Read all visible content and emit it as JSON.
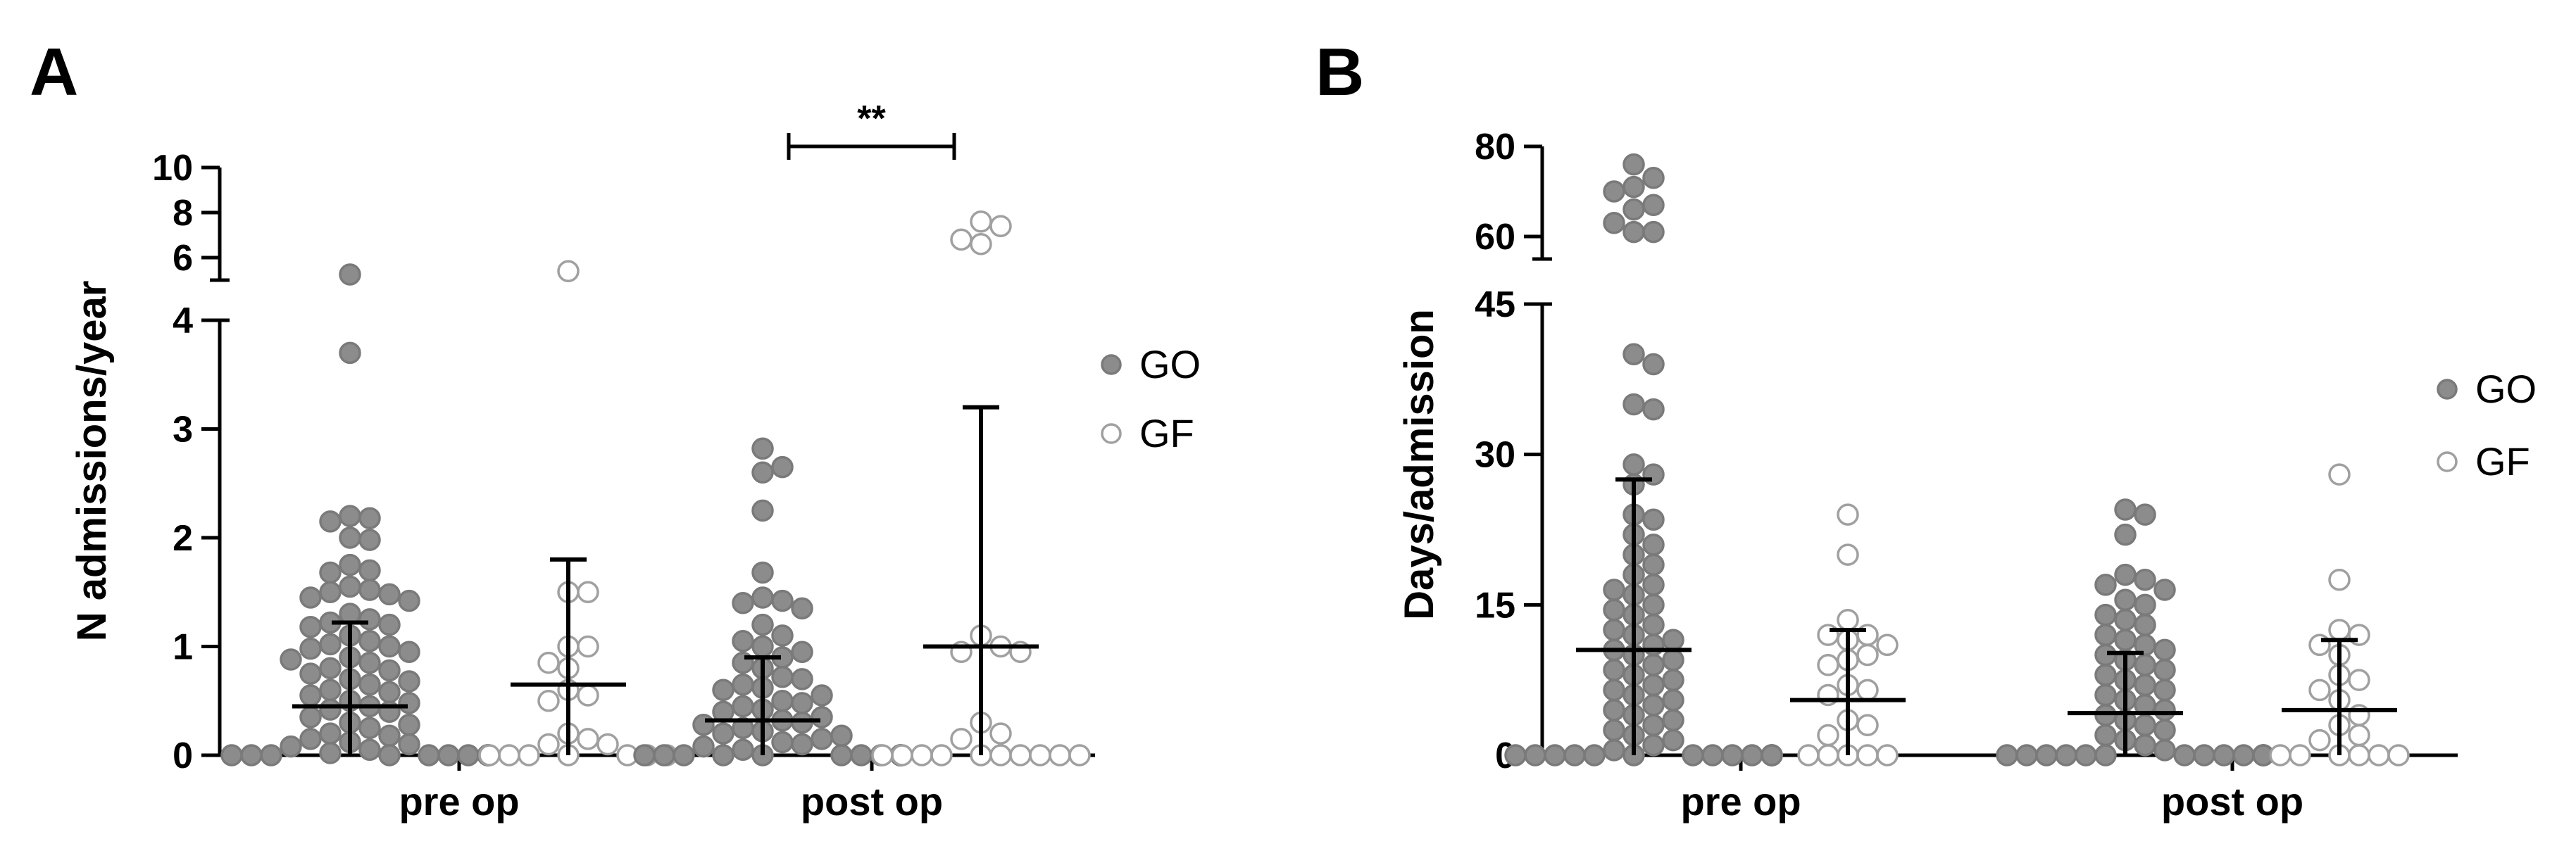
{
  "chart_data": [
    {
      "panel": "A",
      "type": "scatter",
      "ylabel": "N admissions/year",
      "categories": [
        "pre op",
        "post op"
      ],
      "yaxis_lower": {
        "range": [
          0,
          4
        ],
        "ticks": [
          "0",
          "1",
          "2",
          "3",
          "4"
        ],
        "tick_values": [
          0,
          1,
          2,
          3,
          4
        ]
      },
      "yaxis_upper": {
        "range": [
          5,
          10
        ],
        "ticks": [
          "6",
          "8",
          "10"
        ],
        "tick_values": [
          6,
          8,
          10
        ]
      },
      "legend": [
        {
          "name": "GO",
          "fill": "#8c8c8c",
          "stroke": "#7a7a7a"
        },
        {
          "name": "GF",
          "fill": "#ffffff",
          "stroke": "#a0a0a0"
        }
      ],
      "significance": {
        "label": "**",
        "between": [
          "post op GO",
          "post op GF"
        ]
      },
      "series": [
        {
          "name": "GO",
          "category": "pre op",
          "median": 0.45,
          "iqr": [
            0.0,
            1.22
          ],
          "values": [
            5.25,
            3.7,
            2.2,
            2.18,
            2.15,
            2.0,
            1.98,
            1.75,
            1.7,
            1.68,
            1.55,
            1.52,
            1.5,
            1.48,
            1.45,
            1.42,
            1.3,
            1.25,
            1.22,
            1.2,
            1.18,
            1.1,
            1.05,
            1.02,
            1.0,
            0.98,
            0.95,
            0.9,
            0.88,
            0.85,
            0.8,
            0.78,
            0.75,
            0.7,
            0.68,
            0.65,
            0.6,
            0.58,
            0.55,
            0.5,
            0.48,
            0.45,
            0.42,
            0.4,
            0.35,
            0.3,
            0.28,
            0.25,
            0.2,
            0.18,
            0.15,
            0.12,
            0.1,
            0.08,
            0.05,
            0.02,
            0,
            0,
            0,
            0,
            0,
            0,
            0,
            0,
            0,
            0,
            0,
            0,
            0,
            0,
            0,
            0
          ]
        },
        {
          "name": "GF",
          "category": "pre op",
          "median": 0.65,
          "iqr": [
            0.0,
            1.8
          ],
          "values": [
            5.4,
            1.5,
            1.5,
            1.0,
            1.0,
            0.85,
            0.8,
            0.6,
            0.55,
            0.5,
            0.2,
            0.15,
            0.1,
            0.1,
            0,
            0,
            0,
            0,
            0,
            0,
            0
          ]
        },
        {
          "name": "GO",
          "category": "post op",
          "median": 0.32,
          "iqr": [
            0.0,
            0.9
          ],
          "values": [
            2.82,
            2.65,
            2.6,
            2.25,
            1.68,
            1.45,
            1.42,
            1.4,
            1.35,
            1.2,
            1.1,
            1.05,
            1.0,
            0.95,
            0.9,
            0.85,
            0.8,
            0.72,
            0.7,
            0.65,
            0.62,
            0.6,
            0.55,
            0.5,
            0.48,
            0.45,
            0.42,
            0.4,
            0.35,
            0.32,
            0.3,
            0.28,
            0.25,
            0.22,
            0.2,
            0.18,
            0.15,
            0.12,
            0.1,
            0.08,
            0.05,
            0,
            0,
            0,
            0,
            0,
            0,
            0,
            0,
            0,
            0,
            0,
            0,
            0,
            0,
            0,
            0
          ]
        },
        {
          "name": "GF",
          "category": "post op",
          "median": 1.0,
          "iqr": [
            0.0,
            3.2
          ],
          "values": [
            7.6,
            7.4,
            6.8,
            6.6,
            1.1,
            1.0,
            0.95,
            0.95,
            0.3,
            0.2,
            0.15,
            0,
            0,
            0,
            0,
            0,
            0,
            0,
            0,
            0,
            0
          ]
        }
      ]
    },
    {
      "panel": "B",
      "type": "scatter",
      "ylabel": "Days/admission",
      "categories": [
        "pre op",
        "post op"
      ],
      "yaxis_lower": {
        "range": [
          0,
          45
        ],
        "ticks": [
          "0",
          "15",
          "30",
          "45"
        ],
        "tick_values": [
          0,
          15,
          30,
          45
        ]
      },
      "yaxis_upper": {
        "range": [
          55,
          80
        ],
        "ticks": [
          "60",
          "80"
        ],
        "tick_values": [
          60,
          80
        ]
      },
      "legend": [
        {
          "name": "GO",
          "fill": "#8c8c8c",
          "stroke": "#7a7a7a"
        },
        {
          "name": "GF",
          "fill": "#ffffff",
          "stroke": "#a0a0a0"
        }
      ],
      "series": [
        {
          "name": "GO",
          "category": "pre op",
          "median": 10.5,
          "iqr": [
            0.0,
            27.5
          ],
          "values": [
            76,
            73,
            71,
            70,
            67,
            66,
            63,
            61,
            61,
            40,
            39,
            35,
            34.5,
            29,
            28,
            27,
            24,
            23.5,
            22,
            21,
            20,
            19,
            18,
            17,
            16.5,
            16,
            15,
            14.5,
            14,
            13,
            12.5,
            12,
            11.5,
            11,
            10.5,
            10,
            9.5,
            9,
            8.5,
            8,
            7.5,
            7,
            6.5,
            6,
            5.5,
            5,
            4.5,
            4,
            3.5,
            3,
            2.5,
            2,
            1.5,
            1,
            0.5,
            0,
            0,
            0,
            0,
            0,
            0,
            0,
            0,
            0,
            0,
            0,
            0,
            0,
            0,
            0
          ]
        },
        {
          "name": "GF",
          "category": "pre op",
          "median": 5.5,
          "iqr": [
            0.0,
            12.5
          ],
          "values": [
            24,
            20,
            13.5,
            12,
            12,
            11.5,
            11,
            10,
            9.5,
            9,
            7,
            6.5,
            6,
            3.5,
            3,
            2,
            0,
            0,
            0,
            0,
            0
          ]
        },
        {
          "name": "GO",
          "category": "post op",
          "median": 4.2,
          "iqr": [
            0.0,
            10.2
          ],
          "values": [
            24.5,
            24,
            22,
            18,
            17.5,
            17,
            16.5,
            15.5,
            15,
            14,
            13.5,
            13,
            12,
            11.5,
            11,
            10.5,
            10,
            9.5,
            9,
            8.5,
            8,
            7.5,
            7,
            6.5,
            6,
            5.5,
            5,
            4.5,
            4,
            3.5,
            3,
            2.5,
            2,
            1.5,
            1,
            0.5,
            0,
            0,
            0,
            0,
            0,
            0,
            0,
            0,
            0,
            0,
            0,
            0,
            0,
            0,
            0
          ]
        },
        {
          "name": "GF",
          "category": "post op",
          "median": 4.5,
          "iqr": [
            0.0,
            11.5
          ],
          "values": [
            28,
            17.5,
            12.5,
            12,
            11,
            10,
            8,
            7.5,
            6.5,
            5.5,
            4,
            3,
            2,
            1.5,
            0,
            0,
            0,
            0,
            0,
            0
          ]
        }
      ]
    }
  ]
}
